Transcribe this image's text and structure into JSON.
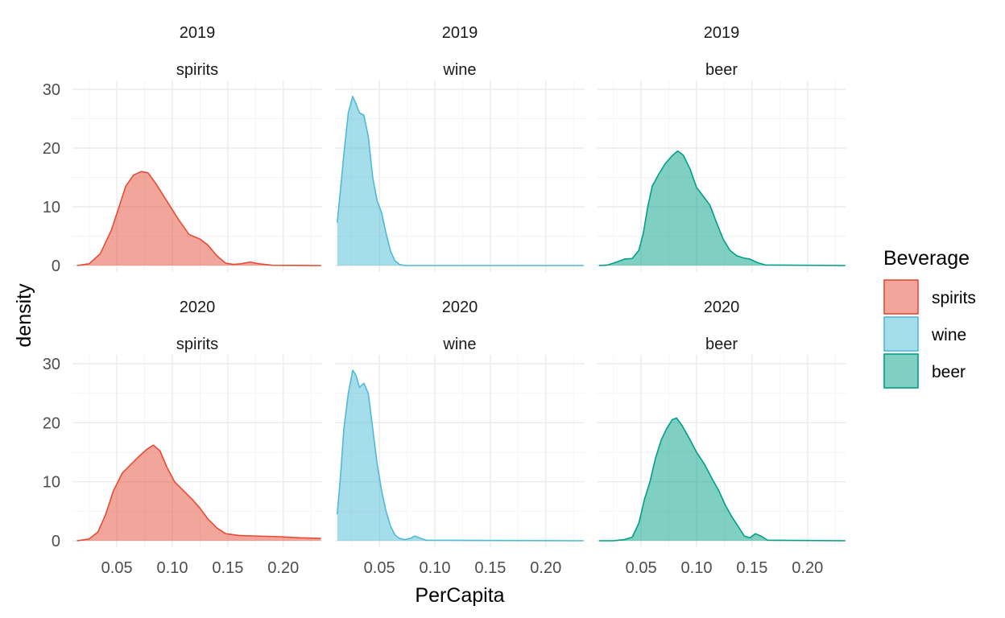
{
  "chart_data": {
    "type": "area",
    "subtype": "density",
    "xlabel": "PerCapita",
    "ylabel": "density",
    "xlim": [
      0.01,
      0.235
    ],
    "ylim": [
      0,
      30
    ],
    "x_ticks": [
      0.05,
      0.1,
      0.15,
      0.2
    ],
    "x_tick_labels": [
      "0.05",
      "0.10",
      "0.15",
      "0.20"
    ],
    "y_ticks": [
      0,
      10,
      20,
      30
    ],
    "y_tick_labels": [
      "0",
      "10",
      "20",
      "30"
    ],
    "grid": true,
    "legend": {
      "title": "Beverage",
      "position": "right",
      "entries": [
        {
          "label": "spirits",
          "color": "#E64B35"
        },
        {
          "label": "wine",
          "color": "#4DBBD5"
        },
        {
          "label": "beer",
          "color": "#00A087"
        }
      ]
    },
    "panels": [
      {
        "year": "2019",
        "beverage": "spirits",
        "color": "#E64B35",
        "points": [
          [
            0.014,
            0
          ],
          [
            0.025,
            0.3
          ],
          [
            0.035,
            2
          ],
          [
            0.045,
            6
          ],
          [
            0.052,
            10
          ],
          [
            0.058,
            13.5
          ],
          [
            0.065,
            15.4
          ],
          [
            0.072,
            16
          ],
          [
            0.078,
            15.8
          ],
          [
            0.085,
            14
          ],
          [
            0.095,
            11
          ],
          [
            0.105,
            8
          ],
          [
            0.115,
            5.3
          ],
          [
            0.125,
            4.5
          ],
          [
            0.132,
            3.5
          ],
          [
            0.14,
            1.7
          ],
          [
            0.148,
            0.4
          ],
          [
            0.155,
            0.2
          ],
          [
            0.162,
            0.3
          ],
          [
            0.17,
            0.6
          ],
          [
            0.178,
            0.3
          ],
          [
            0.19,
            0.05
          ],
          [
            0.234,
            0
          ]
        ]
      },
      {
        "year": "2019",
        "beverage": "wine",
        "color": "#4DBBD5",
        "points": [
          [
            0.012,
            7.3
          ],
          [
            0.015,
            13
          ],
          [
            0.018,
            19
          ],
          [
            0.022,
            26
          ],
          [
            0.026,
            28.8
          ],
          [
            0.029,
            27.5
          ],
          [
            0.032,
            26
          ],
          [
            0.036,
            25.6
          ],
          [
            0.04,
            22
          ],
          [
            0.044,
            15
          ],
          [
            0.048,
            11
          ],
          [
            0.052,
            9
          ],
          [
            0.056,
            5.5
          ],
          [
            0.06,
            2.5
          ],
          [
            0.064,
            0.8
          ],
          [
            0.068,
            0.2
          ],
          [
            0.073,
            0
          ],
          [
            0.234,
            0
          ]
        ]
      },
      {
        "year": "2019",
        "beverage": "beer",
        "color": "#00A087",
        "points": [
          [
            0.012,
            0
          ],
          [
            0.02,
            0.1
          ],
          [
            0.028,
            0.6
          ],
          [
            0.035,
            1.1
          ],
          [
            0.042,
            1.2
          ],
          [
            0.048,
            2.6
          ],
          [
            0.052,
            5.5
          ],
          [
            0.056,
            10
          ],
          [
            0.06,
            13.5
          ],
          [
            0.066,
            15.6
          ],
          [
            0.072,
            17.4
          ],
          [
            0.078,
            18.7
          ],
          [
            0.083,
            19.5
          ],
          [
            0.088,
            18.8
          ],
          [
            0.094,
            16.5
          ],
          [
            0.1,
            13.3
          ],
          [
            0.106,
            11.8
          ],
          [
            0.112,
            10.3
          ],
          [
            0.118,
            7.3
          ],
          [
            0.124,
            4.5
          ],
          [
            0.13,
            2.6
          ],
          [
            0.136,
            1.7
          ],
          [
            0.142,
            1.3
          ],
          [
            0.148,
            1.1
          ],
          [
            0.155,
            0.5
          ],
          [
            0.162,
            0.1
          ],
          [
            0.234,
            0
          ]
        ]
      },
      {
        "year": "2020",
        "beverage": "spirits",
        "color": "#E64B35",
        "points": [
          [
            0.014,
            0
          ],
          [
            0.025,
            0.3
          ],
          [
            0.033,
            1.5
          ],
          [
            0.04,
            4.5
          ],
          [
            0.047,
            8.5
          ],
          [
            0.055,
            11.5
          ],
          [
            0.063,
            13
          ],
          [
            0.07,
            14.3
          ],
          [
            0.077,
            15.5
          ],
          [
            0.083,
            16.2
          ],
          [
            0.089,
            15.2
          ],
          [
            0.095,
            12.5
          ],
          [
            0.102,
            10
          ],
          [
            0.11,
            8.5
          ],
          [
            0.118,
            7
          ],
          [
            0.125,
            5.5
          ],
          [
            0.132,
            3.7
          ],
          [
            0.14,
            2.2
          ],
          [
            0.148,
            1.2
          ],
          [
            0.16,
            0.9
          ],
          [
            0.175,
            0.8
          ],
          [
            0.195,
            0.7
          ],
          [
            0.215,
            0.5
          ],
          [
            0.234,
            0.4
          ]
        ]
      },
      {
        "year": "2020",
        "beverage": "wine",
        "color": "#4DBBD5",
        "points": [
          [
            0.012,
            4.5
          ],
          [
            0.015,
            11
          ],
          [
            0.018,
            19
          ],
          [
            0.022,
            25
          ],
          [
            0.026,
            28.9
          ],
          [
            0.029,
            28
          ],
          [
            0.032,
            26
          ],
          [
            0.036,
            26.7
          ],
          [
            0.04,
            25
          ],
          [
            0.044,
            19
          ],
          [
            0.048,
            13
          ],
          [
            0.052,
            8.5
          ],
          [
            0.056,
            5
          ],
          [
            0.06,
            2.5
          ],
          [
            0.064,
            1
          ],
          [
            0.068,
            0.4
          ],
          [
            0.073,
            0.2
          ],
          [
            0.078,
            0.4
          ],
          [
            0.082,
            0.8
          ],
          [
            0.086,
            0.5
          ],
          [
            0.092,
            0.1
          ],
          [
            0.234,
            0
          ]
        ]
      },
      {
        "year": "2020",
        "beverage": "beer",
        "color": "#00A087",
        "points": [
          [
            0.012,
            0
          ],
          [
            0.025,
            0
          ],
          [
            0.035,
            0.2
          ],
          [
            0.042,
            0.6
          ],
          [
            0.048,
            3
          ],
          [
            0.053,
            7
          ],
          [
            0.058,
            10
          ],
          [
            0.063,
            14
          ],
          [
            0.068,
            17
          ],
          [
            0.073,
            19
          ],
          [
            0.078,
            20.5
          ],
          [
            0.082,
            20.8
          ],
          [
            0.087,
            19.5
          ],
          [
            0.093,
            17.5
          ],
          [
            0.1,
            15
          ],
          [
            0.107,
            13
          ],
          [
            0.114,
            10.5
          ],
          [
            0.12,
            8.5
          ],
          [
            0.126,
            6
          ],
          [
            0.132,
            4
          ],
          [
            0.138,
            2.3
          ],
          [
            0.143,
            0.8
          ],
          [
            0.148,
            0.5
          ],
          [
            0.153,
            1.2
          ],
          [
            0.158,
            0.8
          ],
          [
            0.164,
            0.1
          ],
          [
            0.234,
            0
          ]
        ]
      }
    ]
  }
}
